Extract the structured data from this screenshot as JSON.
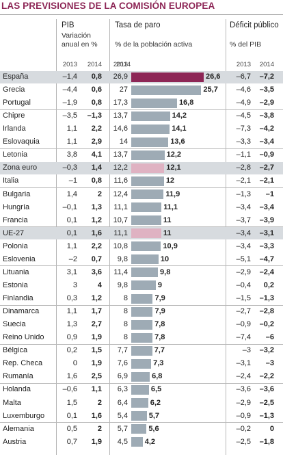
{
  "title": "LAS PREVISIONES DE LA COMISIÓN EUROPEA",
  "colors": {
    "bar": "#9eabb5",
    "bar_espana": "#8d2656",
    "bar_aggregate": "#dfb2c2",
    "highlight_row": "#d7dbdf",
    "title": "#8d2656"
  },
  "headers": {
    "pib_title": "PIB",
    "pib_sub1": "Variación",
    "pib_sub2": "anual en %",
    "paro_title": "Tasa de paro",
    "paro_sub": "% de la población activa",
    "deficit_title": "Déficit público",
    "deficit_sub": "% del PIB",
    "year_2013": "2013",
    "year_2014": "2014"
  },
  "chart_data": {
    "type": "table",
    "title": "LAS PREVISIONES DE LA COMISIÓN EUROPEA",
    "columns": [
      "PIB 2013",
      "PIB 2014",
      "Tasa de paro 2013",
      "Tasa de paro 2014",
      "Déficit público 2013",
      "Déficit público 2014"
    ],
    "rows": [
      {
        "country": "España",
        "pib13": "–1,4",
        "pib14": "0,8",
        "paro13": "26,9",
        "paro14": "26,6",
        "paro14_value": 26.6,
        "def13": "–6,7",
        "def14": "–7,2",
        "highlight": true,
        "bar": "espana"
      },
      {
        "country": "Grecia",
        "pib13": "–4,4",
        "pib14": "0,6",
        "paro13": "27",
        "paro14": "25,7",
        "paro14_value": 25.7,
        "def13": "–4,6",
        "def14": "–3,5"
      },
      {
        "country": "Portugal",
        "pib13": "–1,9",
        "pib14": "0,8",
        "paro13": "17,3",
        "paro14": "16,8",
        "paro14_value": 16.8,
        "def13": "–4,9",
        "def14": "–2,9"
      },
      {
        "country": "Chipre",
        "pib13": "–3,5",
        "pib14": "–1,3",
        "paro13": "13,7",
        "paro14": "14,2",
        "paro14_value": 14.2,
        "def13": "–4,5",
        "def14": "–3,8",
        "group_start": true
      },
      {
        "country": "Irlanda",
        "pib13": "1,1",
        "pib14": "2,2",
        "paro13": "14,6",
        "paro14": "14,1",
        "paro14_value": 14.1,
        "def13": "–7,3",
        "def14": "–4,2"
      },
      {
        "country": "Eslovaquia",
        "pib13": "1,1",
        "pib14": "2,9",
        "paro13": "14",
        "paro14": "13,6",
        "paro14_value": 13.6,
        "def13": "–3,3",
        "def14": "–3,4"
      },
      {
        "country": "Letonia",
        "pib13": "3,8",
        "pib14": "4,1",
        "paro13": "13,7",
        "paro14": "12,2",
        "paro14_value": 12.2,
        "def13": "–1,1",
        "def14": "–0,9",
        "group_start": true
      },
      {
        "country": "Zona euro",
        "pib13": "–0,3",
        "pib14": "1,4",
        "paro13": "12,2",
        "paro14": "12,1",
        "paro14_value": 12.1,
        "def13": "–2,8",
        "def14": "–2,7",
        "highlight": true,
        "bar": "aggregate"
      },
      {
        "country": "Italia",
        "pib13": "–1",
        "pib14": "0,8",
        "paro13": "11,6",
        "paro14": "12",
        "paro14_value": 12.0,
        "def13": "–2,1",
        "def14": "–2,1"
      },
      {
        "country": "Bulgaria",
        "pib13": "1,4",
        "pib14": "2",
        "paro13": "12,4",
        "paro14": "11,9",
        "paro14_value": 11.9,
        "def13": "–1,3",
        "def14": "–1",
        "group_start": true
      },
      {
        "country": "Hungría",
        "pib13": "–0,1",
        "pib14": "1,3",
        "paro13": "11,1",
        "paro14": "11,1",
        "paro14_value": 11.1,
        "def13": "–3,4",
        "def14": "–3,4"
      },
      {
        "country": "Francia",
        "pib13": "0,1",
        "pib14": "1,2",
        "paro13": "10,7",
        "paro14": "11",
        "paro14_value": 11.0,
        "def13": "–3,7",
        "def14": "–3,9"
      },
      {
        "country": "UE-27",
        "pib13": "0,1",
        "pib14": "1,6",
        "paro13": "11,1",
        "paro14": "11",
        "paro14_value": 11.0,
        "def13": "–3,4",
        "def14": "–3,1",
        "highlight": true,
        "bar": "aggregate",
        "group_start": true
      },
      {
        "country": "Polonia",
        "pib13": "1,1",
        "pib14": "2,2",
        "paro13": "10,8",
        "paro14": "10,9",
        "paro14_value": 10.9,
        "def13": "–3,4",
        "def14": "–3,3"
      },
      {
        "country": "Eslovenia",
        "pib13": "–2",
        "pib14": "0,7",
        "paro13": "9,8",
        "paro14": "10",
        "paro14_value": 10.0,
        "def13": "–5,1",
        "def14": "–4,7"
      },
      {
        "country": "Lituania",
        "pib13": "3,1",
        "pib14": "3,6",
        "paro13": "11,4",
        "paro14": "9,8",
        "paro14_value": 9.8,
        "def13": "–2,9",
        "def14": "–2,4",
        "group_start": true
      },
      {
        "country": "Estonia",
        "pib13": "3",
        "pib14": "4",
        "paro13": "9,8",
        "paro14": "9",
        "paro14_value": 9.0,
        "def13": "–0,4",
        "def14": "0,2"
      },
      {
        "country": "Finlandia",
        "pib13": "0,3",
        "pib14": "1,2",
        "paro13": "8",
        "paro14": "7,9",
        "paro14_value": 7.9,
        "def13": "–1,5",
        "def14": "–1,3"
      },
      {
        "country": "Dinamarca",
        "pib13": "1,1",
        "pib14": "1,7",
        "paro13": "8",
        "paro14": "7,9",
        "paro14_value": 7.9,
        "def13": "–2,7",
        "def14": "–2,8",
        "group_start": true
      },
      {
        "country": "Suecia",
        "pib13": "1,3",
        "pib14": "2,7",
        "paro13": "8",
        "paro14": "7,8",
        "paro14_value": 7.8,
        "def13": "–0,9",
        "def14": "–0,2"
      },
      {
        "country": "Reino Unido",
        "pib13": "0,9",
        "pib14": "1,9",
        "paro13": "8",
        "paro14": "7,8",
        "paro14_value": 7.8,
        "def13": "–7,4",
        "def14": "–6"
      },
      {
        "country": "Bélgica",
        "pib13": "0,2",
        "pib14": "1,5",
        "paro13": "7,7",
        "paro14": "7,7",
        "paro14_value": 7.7,
        "def13": "–3",
        "def14": "–3,2",
        "group_start": true
      },
      {
        "country": "Rep. Checa",
        "pib13": "0",
        "pib14": "1,9",
        "paro13": "7,6",
        "paro14": "7,3",
        "paro14_value": 7.3,
        "def13": "–3,1",
        "def14": "–3"
      },
      {
        "country": "Rumanía",
        "pib13": "1,6",
        "pib14": "2,5",
        "paro13": "6,9",
        "paro14": "6,8",
        "paro14_value": 6.8,
        "def13": "–2,4",
        "def14": "–2,2"
      },
      {
        "country": "Holanda",
        "pib13": "–0,6",
        "pib14": "1,1",
        "paro13": "6,3",
        "paro14": "6,5",
        "paro14_value": 6.5,
        "def13": "–3,6",
        "def14": "–3,6",
        "group_start": true
      },
      {
        "country": "Malta",
        "pib13": "1,5",
        "pib14": "2",
        "paro13": "6,4",
        "paro14": "6,2",
        "paro14_value": 6.2,
        "def13": "–2,9",
        "def14": "–2,5"
      },
      {
        "country": "Luxemburgo",
        "pib13": "0,1",
        "pib14": "1,6",
        "paro13": "5,4",
        "paro14": "5,7",
        "paro14_value": 5.7,
        "def13": "–0,9",
        "def14": "–1,3"
      },
      {
        "country": "Alemania",
        "pib13": "0,5",
        "pib14": "2",
        "paro13": "5,7",
        "paro14": "5,6",
        "paro14_value": 5.6,
        "def13": "–0,2",
        "def14": "0",
        "group_start": true
      },
      {
        "country": "Austria",
        "pib13": "0,7",
        "pib14": "1,9",
        "paro13": "4,5",
        "paro14": "4,2",
        "paro14_value": 4.2,
        "def13": "–2,5",
        "def14": "–1,8"
      }
    ]
  }
}
